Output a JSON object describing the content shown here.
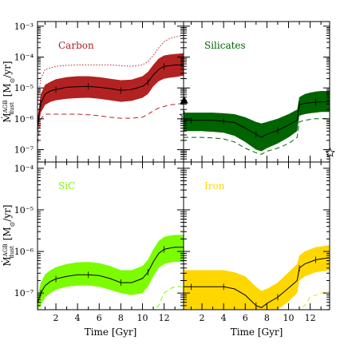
{
  "chart_data": [
    {
      "type": "area",
      "panel": "Carbon",
      "title": "Carbon",
      "color": "#b22222",
      "xlim": [
        0.3,
        13.8
      ],
      "ylim_log10": [
        -7.4,
        -2.85
      ],
      "yticks": [
        "10⁻⁷",
        "10⁻⁶",
        "10⁻⁵",
        "10⁻⁴",
        "10⁻³"
      ],
      "yscale": "log",
      "x": [
        0.3,
        0.6,
        1.0,
        1.5,
        2.0,
        3.0,
        4.0,
        5.0,
        6.0,
        7.0,
        8.0,
        9.0,
        10.0,
        10.5,
        11.0,
        11.5,
        12.0,
        12.5,
        13.0,
        13.8
      ],
      "band_upper_log10": [
        -6.0,
        -5.2,
        -4.9,
        -4.8,
        -4.72,
        -4.65,
        -4.62,
        -4.62,
        -4.65,
        -4.7,
        -4.75,
        -4.73,
        -4.62,
        -4.48,
        -4.25,
        -4.05,
        -3.95,
        -3.92,
        -3.9,
        -3.88
      ],
      "band_lower_log10": [
        -6.5,
        -5.8,
        -5.55,
        -5.45,
        -5.4,
        -5.35,
        -5.33,
        -5.32,
        -5.35,
        -5.4,
        -5.45,
        -5.42,
        -5.32,
        -5.2,
        -4.95,
        -4.78,
        -4.7,
        -4.67,
        -4.65,
        -4.6
      ],
      "median_log10": [
        -6.2,
        -5.5,
        -5.2,
        -5.1,
        -5.05,
        -4.98,
        -4.96,
        -4.95,
        -4.98,
        -5.02,
        -5.08,
        -5.05,
        -4.95,
        -4.82,
        -4.58,
        -4.4,
        -4.3,
        -4.28,
        -4.26,
        -4.25
      ],
      "upper_dotted_log10": [
        -5.5,
        -4.7,
        -4.4,
        -4.35,
        -4.3,
        -4.27,
        -4.25,
        -4.25,
        -4.25,
        -4.25,
        -4.28,
        -4.3,
        -4.25,
        -4.15,
        -3.95,
        -3.7,
        -3.5,
        -3.4,
        -3.35,
        -3.3
      ],
      "lower_dashed_log10": [
        -6.8,
        -6.0,
        -5.85,
        -5.85,
        -5.85,
        -5.85,
        -5.85,
        -5.87,
        -5.9,
        -5.95,
        -5.98,
        -5.98,
        -5.95,
        -5.85,
        -5.75,
        -5.65,
        -5.6,
        -5.55,
        -5.53,
        -5.5
      ],
      "markers": [
        {
          "symbol": "triangle",
          "x": 13.85,
          "y_log10": -5.4
        },
        {
          "symbol": "star",
          "x": 13.85,
          "y_log10": -5.9
        }
      ]
    },
    {
      "type": "area",
      "panel": "Silicates",
      "title": "Silicates",
      "color": "#006400",
      "xlim": [
        0.3,
        13.8
      ],
      "ylim_log10": [
        -7.4,
        -2.85
      ],
      "yscale": "log",
      "x": [
        0.3,
        1.0,
        2.0,
        3.0,
        4.0,
        5.0,
        6.0,
        7.0,
        7.5,
        8.0,
        9.0,
        10.0,
        10.8,
        11.0,
        11.5,
        12.0,
        12.5,
        13.0,
        13.8
      ],
      "band_upper_log10": [
        -5.8,
        -5.8,
        -5.8,
        -5.8,
        -5.82,
        -5.85,
        -5.95,
        -6.1,
        -6.15,
        -6.1,
        -6.0,
        -5.85,
        -5.7,
        -5.3,
        -5.2,
        -5.15,
        -5.12,
        -5.1,
        -5.1
      ],
      "band_lower_log10": [
        -6.4,
        -6.4,
        -6.4,
        -6.42,
        -6.45,
        -6.55,
        -6.75,
        -7.0,
        -7.05,
        -6.95,
        -6.8,
        -6.6,
        -6.4,
        -5.9,
        -5.85,
        -5.82,
        -5.8,
        -5.78,
        -5.78
      ],
      "median_log10": [
        -6.05,
        -6.05,
        -6.05,
        -6.05,
        -6.08,
        -6.12,
        -6.3,
        -6.5,
        -6.6,
        -6.5,
        -6.38,
        -6.2,
        -6.05,
        -5.55,
        -5.5,
        -5.48,
        -5.46,
        -5.45,
        -5.45
      ],
      "lower_dashed_log10": [
        -6.6,
        -6.6,
        -6.6,
        -6.62,
        -6.65,
        -6.75,
        -6.95,
        -7.1,
        -7.15,
        -7.05,
        -6.95,
        -6.8,
        -6.6,
        -6.1,
        -6.05,
        -6.02,
        -6.0,
        -6.0,
        -5.98
      ],
      "markers": [
        {
          "symbol": "star",
          "x": 13.85,
          "y_log10": -7.1
        }
      ]
    },
    {
      "type": "area",
      "panel": "SiC",
      "title": "SiC",
      "color": "#7cfc00",
      "xlim": [
        0.3,
        13.8
      ],
      "ylim_log10": [
        -7.4,
        -3.85
      ],
      "yticks": [
        "10⁻⁷",
        "10⁻⁶",
        "10⁻⁵",
        "10⁻⁴"
      ],
      "yscale": "log",
      "x": [
        0.3,
        0.6,
        1.0,
        1.5,
        2.0,
        3.0,
        4.0,
        5.0,
        6.0,
        7.0,
        8.0,
        9.0,
        10.0,
        10.5,
        11.0,
        11.5,
        12.0,
        12.5,
        13.0,
        13.8
      ],
      "band_upper_log10": [
        -7.1,
        -6.75,
        -6.55,
        -6.45,
        -6.38,
        -6.3,
        -6.26,
        -6.25,
        -6.28,
        -6.35,
        -6.45,
        -6.45,
        -6.35,
        -6.2,
        -5.95,
        -5.75,
        -5.65,
        -5.62,
        -5.6,
        -5.6
      ],
      "band_lower_log10": [
        -7.4,
        -7.3,
        -7.1,
        -7.0,
        -6.92,
        -6.85,
        -6.82,
        -6.82,
        -6.85,
        -6.92,
        -7.0,
        -7.05,
        -7.0,
        -6.85,
        -6.6,
        -6.4,
        -6.3,
        -6.27,
        -6.25,
        -6.25
      ],
      "median_log10": [
        -7.25,
        -7.0,
        -6.82,
        -6.72,
        -6.66,
        -6.6,
        -6.56,
        -6.56,
        -6.58,
        -6.65,
        -6.75,
        -6.75,
        -6.65,
        -6.5,
        -6.25,
        -6.05,
        -5.95,
        -5.92,
        -5.9,
        -5.9
      ],
      "lower_dashed_log10": [
        -7.4,
        -7.4,
        -7.4,
        -7.4,
        -7.4,
        -7.4,
        -7.4,
        -7.4,
        -7.4,
        -7.4,
        -7.4,
        -7.4,
        -7.4,
        -7.4,
        -7.4,
        -7.3,
        -7.0,
        -6.9,
        -6.85,
        -6.85
      ]
    },
    {
      "type": "area",
      "panel": "Iron",
      "title": "Iron",
      "color": "#ffd700",
      "xlim": [
        0.3,
        13.8
      ],
      "ylim_log10": [
        -7.4,
        -3.85
      ],
      "yscale": "log",
      "x": [
        0.3,
        1.0,
        2.0,
        3.0,
        4.0,
        5.0,
        6.0,
        7.0,
        7.5,
        8.0,
        9.0,
        10.0,
        10.8,
        11.0,
        11.5,
        12.0,
        12.5,
        13.0,
        13.8
      ],
      "band_upper_log10": [
        -6.45,
        -6.45,
        -6.45,
        -6.45,
        -6.45,
        -6.5,
        -6.6,
        -6.85,
        -6.95,
        -6.9,
        -6.75,
        -6.5,
        -6.3,
        -6.1,
        -6.0,
        -5.95,
        -5.9,
        -5.88,
        -5.85
      ],
      "band_lower_log10": [
        -7.4,
        -7.4,
        -7.4,
        -7.4,
        -7.4,
        -7.4,
        -7.4,
        -7.4,
        -7.4,
        -7.4,
        -7.4,
        -7.2,
        -7.0,
        -6.7,
        -6.6,
        -6.55,
        -6.5,
        -6.48,
        -6.45
      ],
      "median_log10": [
        -6.85,
        -6.85,
        -6.85,
        -6.85,
        -6.85,
        -6.9,
        -7.05,
        -7.3,
        -7.35,
        -7.25,
        -7.1,
        -6.88,
        -6.7,
        -6.4,
        -6.3,
        -6.25,
        -6.2,
        -6.18,
        -6.15
      ],
      "lower_dashed_log10": [
        -7.4,
        -7.4,
        -7.4,
        -7.4,
        -7.4,
        -7.4,
        -7.4,
        -7.4,
        -7.4,
        -7.4,
        -7.4,
        -7.4,
        -7.4,
        -7.4,
        -7.3,
        -7.1,
        -7.05,
        -7.0,
        -6.95
      ]
    }
  ],
  "axes": {
    "xlabel": "Time [Gyr]",
    "ylabel_main": "Ṁ",
    "ylabel_sup": "AGB",
    "ylabel_sub": "dust",
    "ylabel_unit": "[M",
    "ylabel_unit_sub": "⊙",
    "ylabel_unit_end": "/yr]",
    "xticks": [
      "2",
      "4",
      "6",
      "8",
      "10",
      "12"
    ],
    "xtick_values": [
      2,
      4,
      6,
      8,
      10,
      12
    ]
  }
}
